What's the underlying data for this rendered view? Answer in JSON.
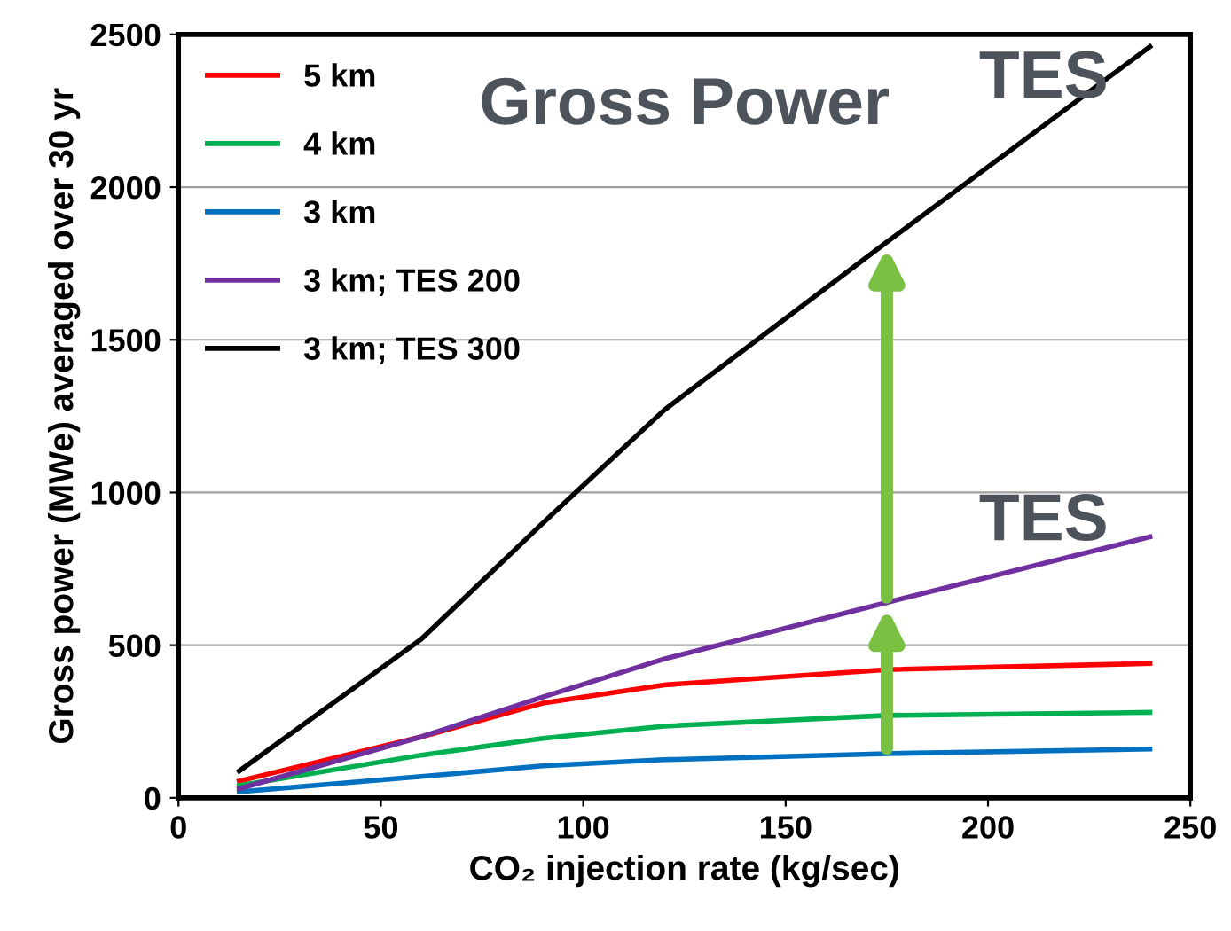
{
  "chart_data": {
    "type": "line",
    "xlabel": "CO₂ injection rate (kg/sec)",
    "ylabel": "Gross power (MWe) averaged over 30 yr",
    "x": [
      15,
      60,
      90,
      120,
      175,
      240
    ],
    "series": [
      {
        "name": "5 km",
        "color": "#ff0000",
        "values": [
          55,
          200,
          310,
          370,
          420,
          440
        ]
      },
      {
        "name": "4 km",
        "color": "#00b050",
        "values": [
          40,
          140,
          195,
          235,
          270,
          280
        ]
      },
      {
        "name": "3 km",
        "color": "#0070c0",
        "values": [
          20,
          70,
          105,
          125,
          145,
          160
        ]
      },
      {
        "name": "3 km; TES 200",
        "color": "#7030a0",
        "values": [
          30,
          200,
          330,
          455,
          640,
          855
        ]
      },
      {
        "name": "3 km; TES 300",
        "color": "#000000",
        "values": [
          88,
          520,
          900,
          1270,
          1820,
          2460
        ]
      }
    ],
    "annotations": [
      "Gross Power",
      "TES",
      "TES"
    ],
    "xlim": [
      0,
      250
    ],
    "xticks": [
      0,
      50,
      100,
      150,
      200,
      250
    ],
    "ylim": [
      0,
      2500
    ],
    "yticks": [
      0,
      500,
      1000,
      1500,
      2000,
      2500
    ],
    "grid": "y",
    "legend": "top left",
    "marker": "none",
    "line_style": "solid"
  }
}
